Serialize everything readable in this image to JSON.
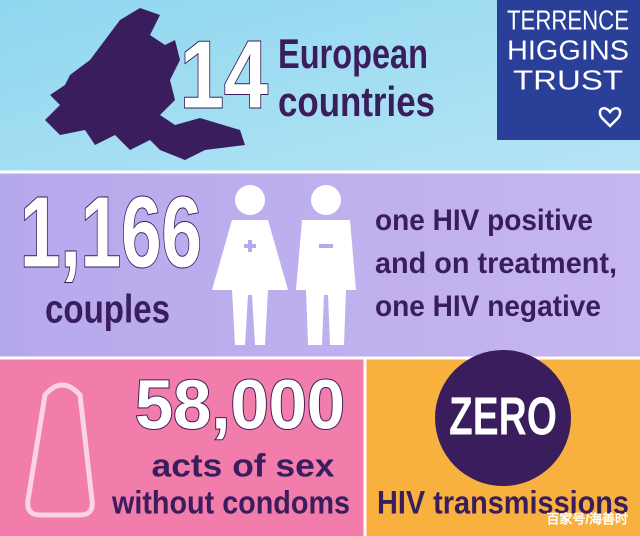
{
  "logo": {
    "lines": [
      "TERRENCE",
      "HIGGINS",
      "TRUST"
    ]
  },
  "countries": {
    "number": "14",
    "label_lines": [
      "European",
      "countries"
    ]
  },
  "couples": {
    "number": "1,166",
    "label": "couples",
    "description_lines": [
      "one HIV positive",
      "and on treatment,",
      "one HIV negative"
    ]
  },
  "acts": {
    "number": "58,000",
    "label_lines": [
      "acts of sex",
      "without condoms"
    ]
  },
  "transmissions": {
    "number": "ZERO",
    "label": "HIV transmissions"
  },
  "watermark": "百家号/海善时"
}
